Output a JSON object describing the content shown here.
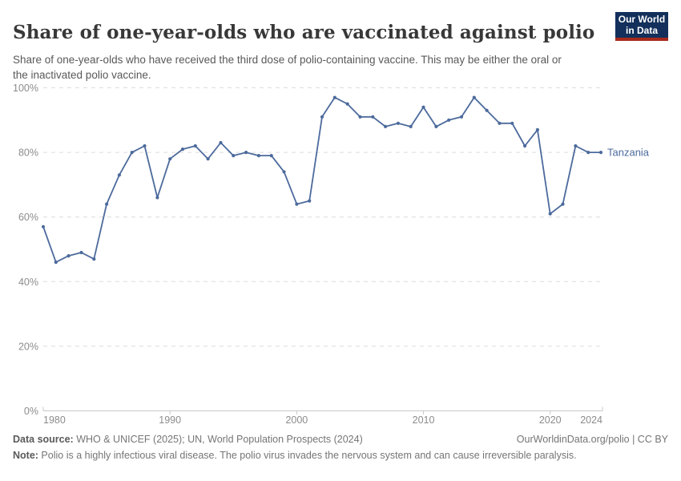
{
  "header": {
    "title": "Share of one-year-olds who are vaccinated against polio",
    "subtitle": "Share of one-year-olds who have received the third dose of polio-containing vaccine. This may be either the oral or the inactivated polio vaccine.",
    "logo": {
      "line1": "Our World",
      "line2": "in Data"
    }
  },
  "chart_data": {
    "type": "line",
    "title": "Share of one-year-olds who are vaccinated against polio",
    "x": [
      1980,
      1981,
      1982,
      1983,
      1984,
      1985,
      1986,
      1987,
      1988,
      1989,
      1990,
      1991,
      1992,
      1993,
      1994,
      1995,
      1996,
      1997,
      1998,
      1999,
      2000,
      2001,
      2002,
      2003,
      2004,
      2005,
      2006,
      2007,
      2008,
      2009,
      2010,
      2011,
      2012,
      2013,
      2014,
      2015,
      2016,
      2017,
      2018,
      2019,
      2020,
      2021,
      2022,
      2023,
      2024
    ],
    "series": [
      {
        "name": "Tanzania",
        "color": "#4C6A9C",
        "values": [
          57,
          46,
          48,
          49,
          47,
          64,
          73,
          80,
          82,
          66,
          78,
          81,
          82,
          78,
          83,
          79,
          80,
          79,
          79,
          74,
          64,
          65,
          91,
          97,
          95,
          91,
          91,
          88,
          89,
          88,
          94,
          88,
          90,
          91,
          97,
          93,
          89,
          89,
          82,
          87,
          61,
          64,
          82,
          80,
          80
        ]
      }
    ],
    "xlabel": "",
    "ylabel": "",
    "ylim": [
      0,
      100
    ],
    "yticks": [
      0,
      20,
      40,
      60,
      80,
      100
    ],
    "ytick_suffix": "%",
    "xticks": [
      1980,
      1990,
      2000,
      2010,
      2020,
      2024
    ],
    "grid": true,
    "legend_position": "end-of-line"
  },
  "footer": {
    "source_label": "Data source:",
    "source_text": " WHO & UNICEF (2025); UN, World Population Prospects (2024)",
    "link_text": "OurWorldinData.org/polio | CC BY",
    "note_label": "Note:",
    "note_text": " Polio is a highly infectious viral disease. The polio virus invades the nervous system and can cause irreversible paralysis."
  },
  "colors": {
    "line": "#4C6A9C",
    "entity_label": "#4C6A9C",
    "title_text": "#383838",
    "subtitle_text": "#595959",
    "axis_text": "#8c8c8c",
    "gridline": "#dcdcdc",
    "axis_line": "#c8c8c8",
    "footer_text": "#757575",
    "logo_background": "#12305b",
    "logo_stripe": "#a52a1c"
  }
}
